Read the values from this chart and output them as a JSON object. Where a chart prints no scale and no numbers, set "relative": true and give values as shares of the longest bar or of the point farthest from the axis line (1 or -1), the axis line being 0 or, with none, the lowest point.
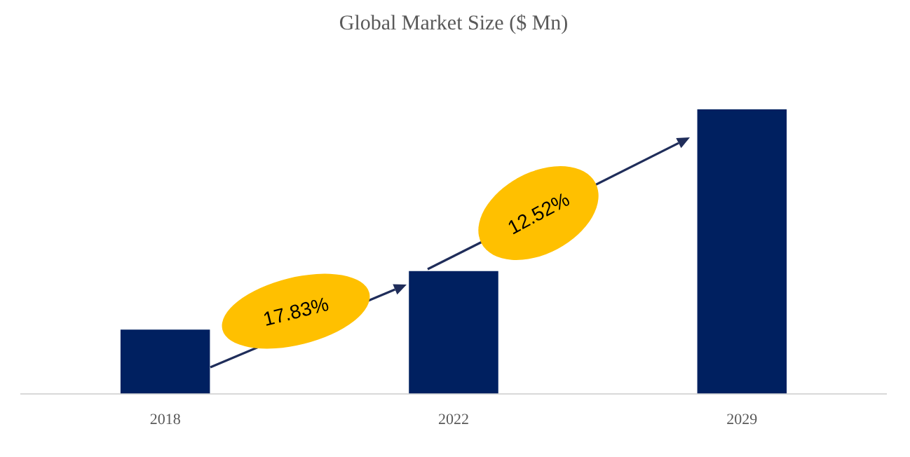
{
  "chart_data": {
    "type": "bar",
    "title": "Global Market Size ($ Mn)",
    "categories": [
      "2018",
      "2022",
      "2029"
    ],
    "values": [
      0.225,
      0.431,
      1
    ],
    "color": "#002060",
    "relative": true,
    "grid": false,
    "legend": false,
    "annotations": [
      "17.83%",
      "12.52%"
    ]
  }
}
